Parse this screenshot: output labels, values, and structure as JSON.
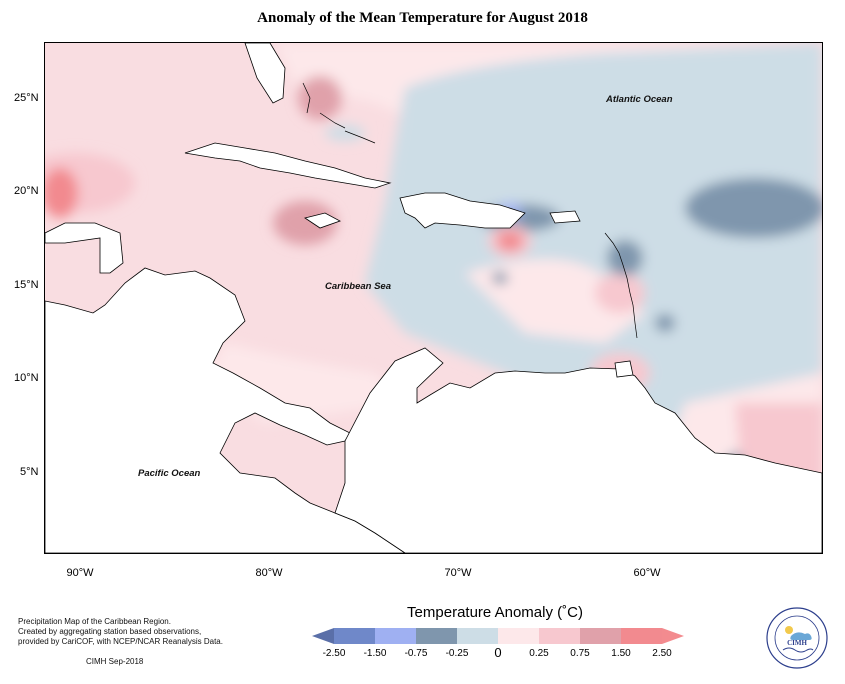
{
  "title": "Anomaly of the Mean Temperature for August 2018",
  "map": {
    "lat_ticks": [
      "25°N",
      "20°N",
      "15°N",
      "10°N",
      "5°N"
    ],
    "lon_ticks": [
      "90°W",
      "80°W",
      "70°W",
      "60°W"
    ],
    "labels": {
      "atlantic": "Atlantic Ocean",
      "caribbean": "Caribbean Sea",
      "pacific": "Pacific Ocean"
    },
    "land_background_color": "#ffffff",
    "coastline_color": "#000000"
  },
  "legend": {
    "title": "Temperature Anomaly (˚C)",
    "tick_labels": [
      "-2.50",
      "-1.50",
      "-0.75",
      "-0.25",
      "0",
      "0.25",
      "0.75",
      "1.50",
      "2.50"
    ],
    "bins": [
      {
        "range": "< -2.50",
        "color": "#5a6fa8"
      },
      {
        "range": "-2.50 to -1.50",
        "color": "#6f88c9"
      },
      {
        "range": "-1.50 to -0.75",
        "color": "#9fb0f2"
      },
      {
        "range": "-0.75 to -0.25",
        "color": "#7f96ad"
      },
      {
        "range": "-0.25 to 0",
        "color": "#cddde6"
      },
      {
        "range": "0 to 0.25",
        "color": "#fde8ea"
      },
      {
        "range": "0.25 to 0.75",
        "color": "#f7c8cf"
      },
      {
        "range": "0.75 to 1.50",
        "color": "#e0a1aa"
      },
      {
        "range": "1.50 to 2.50",
        "color": "#f28a8f"
      },
      {
        "range": "> 2.50",
        "color": "#f38b8f"
      }
    ]
  },
  "credits": {
    "line1": "Precipitation Map of the Caribbean Region.",
    "line2": "Created by aggregating station based observations,",
    "line3": "provided by CariCOF, with NCEP/NCAR Reanalysis Data.",
    "date": "CIMH Sep-2018"
  },
  "logo": {
    "text": "CIMH",
    "ring_text_top": "Caribbean Institute for",
    "ring_text_bottom": "Meteorology and Hydrology"
  }
}
